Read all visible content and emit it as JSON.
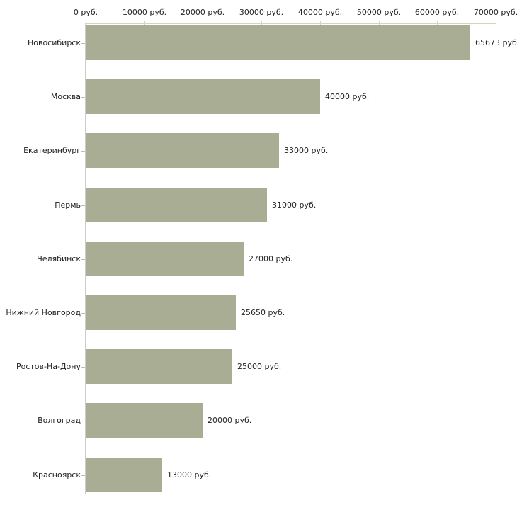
{
  "chart_data": {
    "type": "bar",
    "orientation": "horizontal",
    "title": "",
    "xlabel": "",
    "ylabel": "",
    "unit": "руб.",
    "categories": [
      "Новосибирск",
      "Москва",
      "Екатеринбург",
      "Пермь",
      "Челябинск",
      "Нижний Новгород",
      "Ростов-На-Дону",
      "Волгоград",
      "Красноярск"
    ],
    "values": [
      65673,
      40000,
      33000,
      31000,
      27000,
      25650,
      25000,
      20000,
      13000
    ],
    "value_labels": [
      "65673 руб.",
      "40000 руб.",
      "33000 руб.",
      "31000 руб.",
      "27000 руб.",
      "25650 руб.",
      "25000 руб.",
      "20000 руб.",
      "13000 руб."
    ],
    "xlim": [
      0,
      70000
    ],
    "x_ticks": {
      "values": [
        0,
        10000,
        20000,
        30000,
        40000,
        50000,
        60000,
        70000
      ],
      "labels": [
        "0 руб.",
        "10000 руб.",
        "20000 руб.",
        "30000 руб.",
        "40000 руб.",
        "50000 руб.",
        "60000 руб.",
        "70000 руб."
      ]
    },
    "grid": false,
    "legend": null,
    "colors": {
      "bar": "#a9ad94",
      "x_axis_line": "#d6d3b9",
      "x_tick_mark": "#d6d3b9",
      "y_axis_line": "#cccccc",
      "y_tick_mark": "#bbbbbb",
      "text": "#222222",
      "background": "#ffffff"
    }
  }
}
